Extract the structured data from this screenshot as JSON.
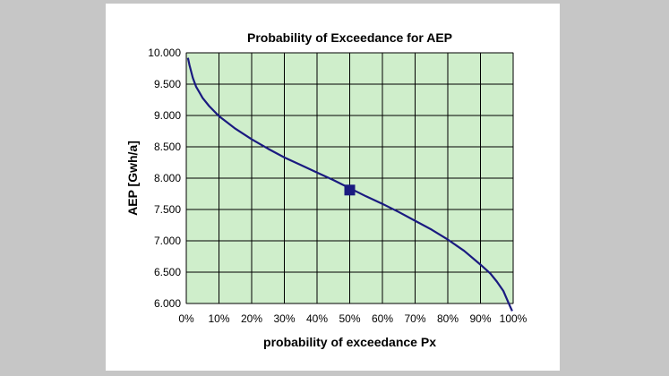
{
  "chart_data": {
    "type": "line",
    "title": "Probability of Exceedance for AEP",
    "xlabel": "probability of exceedance Px",
    "ylabel": "AEP [Gwh/a]",
    "xlim": [
      0,
      100
    ],
    "ylim": [
      6000,
      10000
    ],
    "x_ticks": [
      "0%",
      "10%",
      "20%",
      "30%",
      "40%",
      "50%",
      "60%",
      "70%",
      "80%",
      "90%",
      "100%"
    ],
    "y_ticks": [
      "6.000",
      "6.500",
      "7.000",
      "7.500",
      "8.000",
      "8.500",
      "9.000",
      "9.500",
      "10.000"
    ],
    "grid": true,
    "series": [
      {
        "color": "#1a1a80",
        "x": [
          0.5,
          1,
          2,
          3,
          4,
          5,
          7,
          10,
          15,
          20,
          25,
          30,
          35,
          40,
          45,
          50,
          55,
          60,
          65,
          70,
          75,
          80,
          85,
          90,
          93,
          95,
          97,
          98,
          99,
          99.7
        ],
        "y": [
          9920,
          9800,
          9600,
          9460,
          9370,
          9280,
          9150,
          8990,
          8790,
          8620,
          8470,
          8330,
          8210,
          8090,
          7970,
          7840,
          7710,
          7590,
          7460,
          7320,
          7180,
          7020,
          6840,
          6620,
          6480,
          6350,
          6200,
          6080,
          5960,
          5880
        ]
      }
    ],
    "marker": {
      "x": 50,
      "y": 7810,
      "color": "#1a1a80"
    }
  }
}
